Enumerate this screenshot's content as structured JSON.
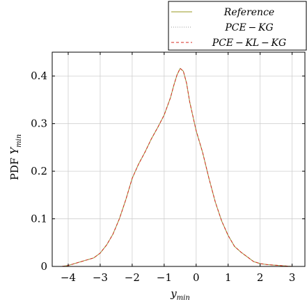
{
  "chart_data": {
    "type": "line",
    "xlabel": "y_min",
    "ylabel": "PDF Y_min",
    "xlim": [
      -4.5,
      3.4
    ],
    "ylim": [
      0,
      0.45
    ],
    "grid": true,
    "legend_position": "top-right",
    "x_ticks": [
      -4,
      -3,
      -2,
      -1,
      0,
      1,
      2,
      3
    ],
    "x_tick_labels": [
      "−4",
      "−3",
      "−2",
      "−1",
      "0",
      "1",
      "2",
      "3"
    ],
    "y_ticks": [
      0,
      0.1,
      0.2,
      0.3,
      0.4
    ],
    "y_tick_labels": [
      "0",
      "0.1",
      "0.2",
      "0.3",
      "0.4"
    ],
    "x": [
      -4.5,
      -4.2,
      -4.0,
      -3.8,
      -3.6,
      -3.4,
      -3.2,
      -3.0,
      -2.8,
      -2.6,
      -2.4,
      -2.2,
      -2.0,
      -1.8,
      -1.6,
      -1.4,
      -1.2,
      -1.0,
      -0.8,
      -0.7,
      -0.6,
      -0.5,
      -0.4,
      -0.3,
      -0.2,
      -0.1,
      0.0,
      0.2,
      0.4,
      0.6,
      0.8,
      1.0,
      1.2,
      1.4,
      1.6,
      1.8,
      2.0,
      2.2,
      2.4,
      2.6,
      2.8,
      3.0,
      3.2,
      3.4
    ],
    "series": [
      {
        "name": "Reference",
        "color": "#9a9a1f",
        "dash": "solid",
        "values": [
          0.0,
          0.0,
          0.002,
          0.006,
          0.01,
          0.014,
          0.018,
          0.028,
          0.045,
          0.068,
          0.1,
          0.14,
          0.185,
          0.215,
          0.24,
          0.268,
          0.292,
          0.318,
          0.355,
          0.38,
          0.402,
          0.416,
          0.41,
          0.385,
          0.345,
          0.315,
          0.285,
          0.24,
          0.185,
          0.135,
          0.095,
          0.065,
          0.042,
          0.03,
          0.02,
          0.01,
          0.006,
          0.004,
          0.003,
          0.002,
          0.001,
          0.0,
          0.0,
          0.0
        ]
      },
      {
        "name": "PCE − KG",
        "color": "#9a9a9a",
        "dash": "dotted",
        "values": [
          0.0,
          0.0,
          0.002,
          0.006,
          0.01,
          0.014,
          0.018,
          0.028,
          0.045,
          0.068,
          0.1,
          0.14,
          0.185,
          0.215,
          0.24,
          0.268,
          0.292,
          0.318,
          0.355,
          0.38,
          0.402,
          0.416,
          0.41,
          0.385,
          0.345,
          0.315,
          0.285,
          0.24,
          0.185,
          0.135,
          0.095,
          0.065,
          0.042,
          0.03,
          0.02,
          0.01,
          0.006,
          0.004,
          0.003,
          0.002,
          0.001,
          0.0,
          0.0,
          0.0
        ]
      },
      {
        "name": "PCE − KL − KG",
        "color": "#d62a1f",
        "dash": "dashed",
        "values": [
          0.0,
          0.0,
          0.002,
          0.006,
          0.01,
          0.014,
          0.018,
          0.028,
          0.045,
          0.068,
          0.1,
          0.14,
          0.185,
          0.215,
          0.24,
          0.268,
          0.292,
          0.318,
          0.355,
          0.38,
          0.402,
          0.416,
          0.41,
          0.385,
          0.345,
          0.315,
          0.285,
          0.24,
          0.185,
          0.135,
          0.095,
          0.065,
          0.042,
          0.03,
          0.02,
          0.01,
          0.006,
          0.004,
          0.003,
          0.002,
          0.001,
          0.0,
          0.0,
          0.0
        ]
      }
    ]
  }
}
